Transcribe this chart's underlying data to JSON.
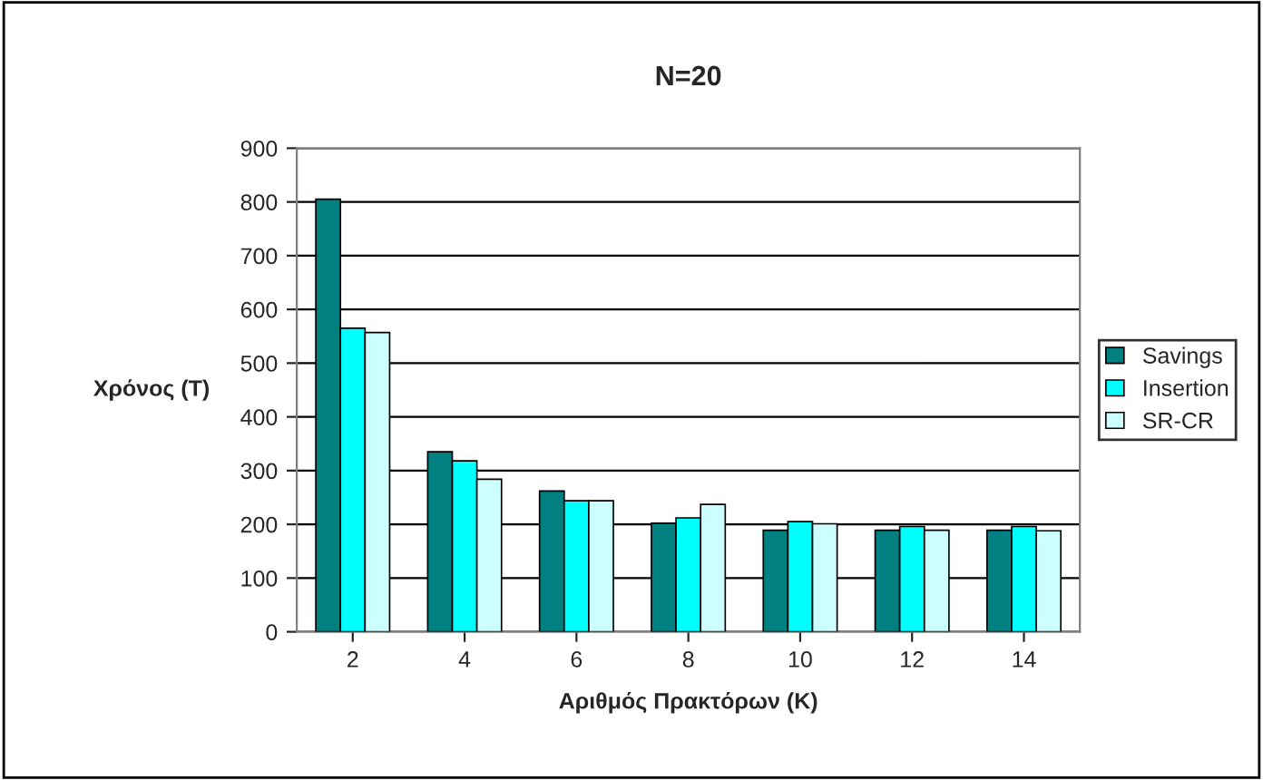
{
  "chart_data": {
    "type": "bar",
    "title": "N=20",
    "xlabel": "Αριθμός Πρακτόρων (K)",
    "ylabel": "Χρόνος (T)",
    "categories": [
      "2",
      "4",
      "6",
      "8",
      "10",
      "12",
      "14"
    ],
    "series": [
      {
        "name": "Savings",
        "color": "#008080",
        "values": [
          805,
          335,
          262,
          202,
          189,
          189,
          189
        ]
      },
      {
        "name": "Insertion",
        "color": "#00ffff",
        "values": [
          565,
          318,
          244,
          212,
          205,
          196,
          196
        ]
      },
      {
        "name": "SR-CR",
        "color": "#ccffff",
        "values": [
          557,
          284,
          244,
          237,
          201,
          189,
          188
        ]
      }
    ],
    "ylim": [
      0,
      900
    ],
    "yticks": [
      0,
      100,
      200,
      300,
      400,
      500,
      600,
      700,
      800,
      900
    ],
    "grid": "y",
    "legend": "right"
  }
}
